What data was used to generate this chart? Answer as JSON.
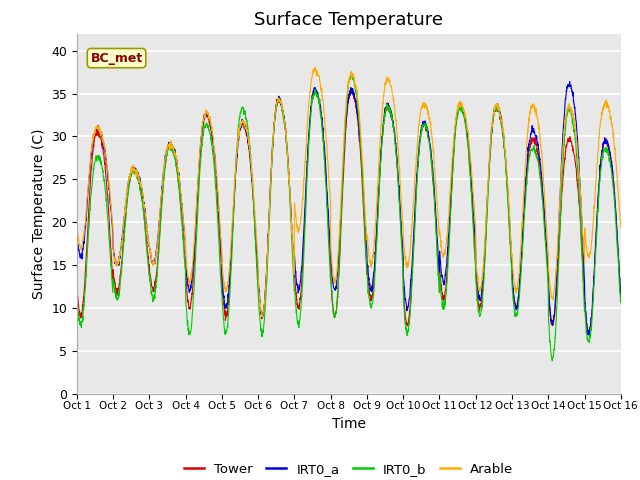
{
  "title": "Surface Temperature",
  "ylabel": "Surface Temperature (C)",
  "xlabel": "Time",
  "annotation": "BC_met",
  "ylim": [
    0,
    42
  ],
  "yticks": [
    0,
    5,
    10,
    15,
    20,
    25,
    30,
    35,
    40
  ],
  "xtick_labels": [
    "Oct 1",
    "Oct 2",
    "Oct 3",
    "Oct 4",
    "Oct 5",
    "Oct 6",
    "Oct 7",
    "Oct 8",
    "Oct 9",
    "Oct 10",
    "Oct 11",
    "Oct 12",
    "Oct 13",
    "Oct 14",
    "Oct 15",
    "Oct 16"
  ],
  "colors": {
    "Tower": "#dd0000",
    "IRT0_a": "#0000dd",
    "IRT0_b": "#00cc00",
    "Arable": "#ffaa00"
  },
  "bg_color": "#e8e8e8",
  "title_fontsize": 13,
  "label_fontsize": 10,
  "tick_fontsize": 9,
  "n_days": 15,
  "pts_per_day": 144,
  "peak_temps_tower": [
    32,
    27,
    30,
    34,
    33,
    36,
    37,
    37,
    35,
    33,
    35,
    35,
    31,
    31,
    31
  ],
  "trough_temps_tower": [
    9,
    12,
    12,
    10,
    9,
    9,
    10,
    9,
    11,
    8,
    11,
    10,
    10,
    8,
    7
  ],
  "peak_temps_irt0a": [
    32,
    27,
    30,
    34,
    33,
    36,
    37,
    37,
    35,
    33,
    35,
    35,
    32,
    38,
    31
  ],
  "trough_temps_irt0a": [
    16,
    15,
    15,
    12,
    10,
    9,
    12,
    12,
    12,
    10,
    13,
    11,
    10,
    8,
    7
  ],
  "peak_temps_irt0b": [
    29,
    27,
    30,
    33,
    35,
    36,
    37,
    39,
    35,
    33,
    35,
    35,
    30,
    35,
    30
  ],
  "trough_temps_irt0b": [
    8,
    11,
    11,
    7,
    7,
    7,
    8,
    9,
    10,
    7,
    10,
    9,
    9,
    4,
    6
  ],
  "peak_temps_arable": [
    32,
    27,
    30,
    34,
    33,
    36,
    39,
    39,
    38,
    35,
    35,
    35,
    35,
    35,
    35
  ],
  "trough_temps_arable": [
    17,
    15,
    15,
    13,
    12,
    9,
    19,
    13,
    15,
    15,
    16,
    12,
    12,
    11,
    16
  ]
}
